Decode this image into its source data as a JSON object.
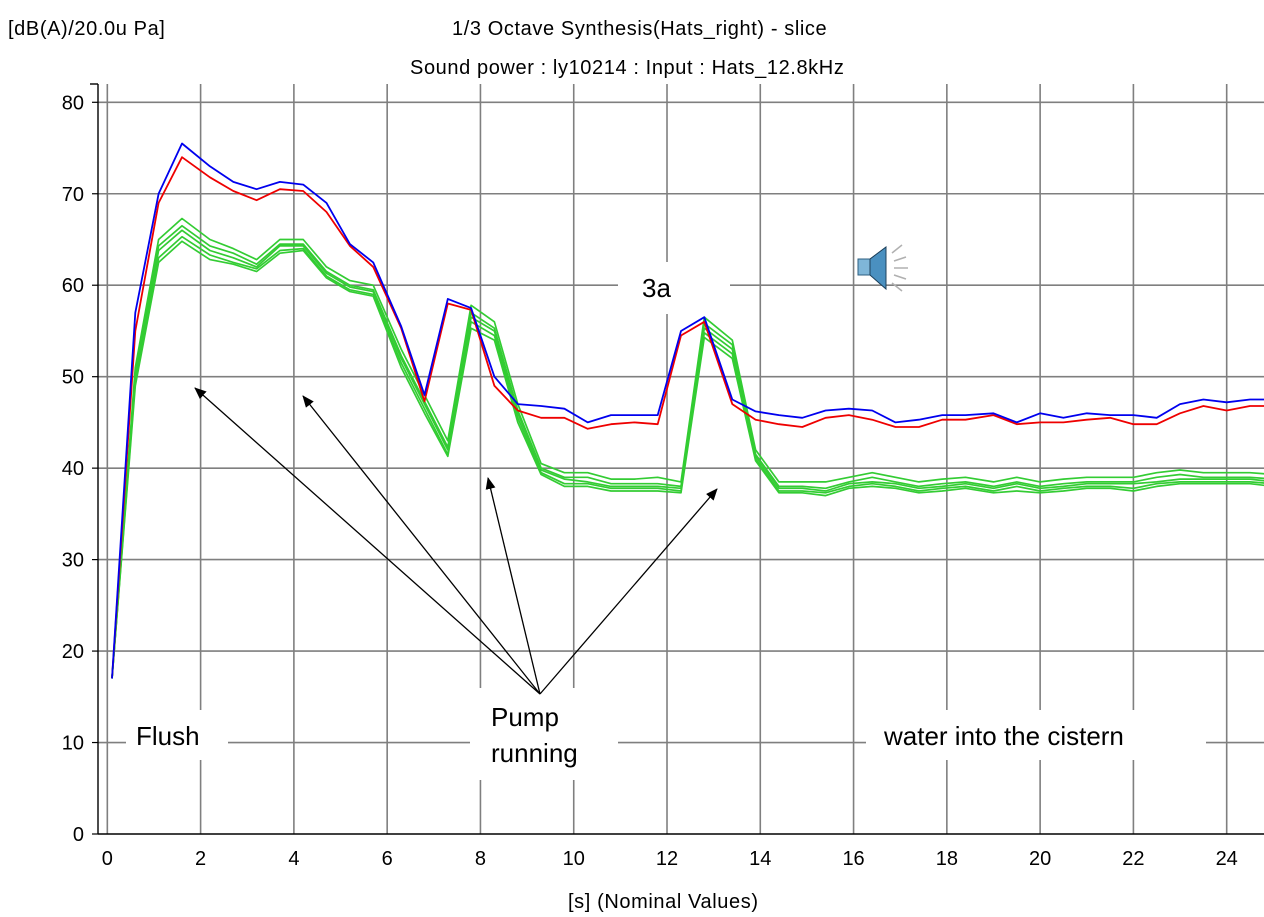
{
  "header": {
    "unit_label": "[dB(A)/20.0u Pa]",
    "title": "1/3 Octave Synthesis(Hats_right) - slice",
    "subtitle": "Sound power : ly10214 : Input : Hats_12.8kHz"
  },
  "annotations": {
    "flush": "Flush",
    "pump_line1": "Pump",
    "pump_line2": "running",
    "cistern": "water into the cistern",
    "marker": "3a"
  },
  "icons": {
    "speaker": "speaker-sound-icon"
  },
  "colors": {
    "blue": "#0000ee",
    "red": "#ee0000",
    "green": "#33cc33",
    "grid": "#7f7f7f"
  },
  "chart_data": {
    "type": "line",
    "title": "1/3 Octave Synthesis(Hats_right) - slice",
    "subtitle": "Sound power : ly10214 : Input : Hats_12.8kHz",
    "xlabel": "[s] (Nominal Values)",
    "ylabel": "[dB(A)/20.0u Pa]",
    "xlim": [
      -0.2,
      24.8
    ],
    "ylim": [
      0,
      82
    ],
    "xticks": [
      0,
      2,
      4,
      6,
      8,
      10,
      12,
      14,
      16,
      18,
      20,
      22,
      24
    ],
    "yticks": [
      0,
      10,
      20,
      30,
      40,
      50,
      60,
      70,
      80
    ],
    "grid": true,
    "x": [
      0.1,
      0.6,
      1.1,
      1.6,
      2.2,
      2.7,
      3.2,
      3.7,
      4.2,
      4.7,
      5.2,
      5.7,
      6.3,
      6.8,
      7.3,
      7.8,
      8.3,
      8.8,
      9.3,
      9.8,
      10.3,
      10.8,
      11.3,
      11.8,
      12.3,
      12.8,
      13.4,
      13.9,
      14.4,
      14.9,
      15.4,
      15.9,
      16.4,
      16.9,
      17.4,
      17.9,
      18.4,
      19.0,
      19.5,
      20.0,
      20.5,
      21.0,
      21.5,
      22.0,
      22.5,
      23.0,
      23.5,
      24.0,
      24.5,
      25.0
    ],
    "series": [
      {
        "color": "#0000ee",
        "values": [
          17,
          57,
          70,
          75.5,
          73,
          71.3,
          70.5,
          71.3,
          71,
          69,
          64.5,
          62.5,
          55.5,
          48,
          58.5,
          57.5,
          50,
          47,
          46.8,
          46.5,
          45,
          45.8,
          45.8,
          45.8,
          55,
          56.5,
          47.5,
          46.2,
          45.8,
          45.5,
          46.3,
          46.5,
          46.3,
          45,
          45.3,
          45.8,
          45.8,
          46,
          45,
          46,
          45.5,
          46,
          45.8,
          45.8,
          45.5,
          47,
          47.5,
          47.2,
          47.5,
          47.5
        ]
      },
      {
        "color": "#ee0000",
        "values": [
          17,
          55,
          69,
          74,
          71.8,
          70.3,
          69.3,
          70.5,
          70.3,
          68,
          64.3,
          62,
          55.3,
          47.3,
          58,
          57.3,
          49,
          46.3,
          45.5,
          45.5,
          44.3,
          44.8,
          45,
          44.8,
          54.5,
          56,
          47,
          45.3,
          44.8,
          44.5,
          45.5,
          45.8,
          45.3,
          44.5,
          44.5,
          45.3,
          45.3,
          45.8,
          44.8,
          45,
          45,
          45.3,
          45.5,
          44.8,
          44.8,
          46,
          46.8,
          46.3,
          46.8,
          46.8
        ]
      },
      {
        "color": "#33cc33",
        "values": [
          17,
          51,
          65,
          67.3,
          65,
          64,
          62.8,
          65,
          65,
          62,
          60.5,
          60,
          53,
          48,
          43,
          57.8,
          56,
          47,
          40.5,
          39.5,
          39.5,
          38.8,
          38.8,
          39,
          38.5,
          56.5,
          54,
          42,
          38.5,
          38.5,
          38.5,
          39,
          39.5,
          39,
          38.5,
          38.8,
          39,
          38.5,
          39,
          38.5,
          38.8,
          39,
          39,
          39,
          39.5,
          39.8,
          39.5,
          39.5,
          39.5,
          39.3
        ]
      },
      {
        "color": "#33cc33",
        "values": [
          17,
          50.5,
          64.3,
          66.5,
          64.3,
          63.5,
          62.3,
          64.5,
          64.5,
          61.5,
          60,
          59.5,
          52.3,
          47.3,
          42.3,
          57,
          55.3,
          46.3,
          40,
          39,
          39,
          38.3,
          38.3,
          38.3,
          38,
          55.8,
          53.5,
          41.5,
          38,
          38,
          37.8,
          38.5,
          39,
          38.5,
          38,
          38.3,
          38.5,
          38,
          38.5,
          38,
          38.3,
          38.5,
          38.5,
          38.5,
          39,
          39.3,
          39,
          39,
          39,
          38.8
        ]
      },
      {
        "color": "#33cc33",
        "values": [
          17,
          50,
          63.8,
          66,
          63.8,
          63,
          62,
          64.3,
          64.3,
          61.3,
          59.8,
          59.3,
          52,
          47,
          42,
          56.5,
          55,
          46,
          39.8,
          38.8,
          38.5,
          38,
          38,
          38,
          37.8,
          55.3,
          53,
          41.3,
          37.8,
          37.8,
          37.5,
          38.3,
          38.5,
          38.3,
          37.8,
          38,
          38.3,
          37.8,
          38.3,
          37.8,
          38,
          38.3,
          38.3,
          38.3,
          38.5,
          38.8,
          38.8,
          38.8,
          38.8,
          38.5
        ]
      },
      {
        "color": "#33cc33",
        "values": [
          17,
          49.5,
          63,
          65.3,
          63.3,
          62.5,
          61.8,
          63.8,
          64,
          61,
          59.5,
          59,
          51.5,
          46.5,
          41.5,
          56,
          54.5,
          45.5,
          39.5,
          38.3,
          38.3,
          37.8,
          37.8,
          37.8,
          37.5,
          54.8,
          52.5,
          41,
          37.5,
          37.5,
          37.3,
          38,
          38.3,
          38,
          37.5,
          37.8,
          38,
          37.5,
          38,
          37.5,
          37.8,
          38,
          38,
          37.8,
          38.3,
          38.5,
          38.5,
          38.5,
          38.5,
          38.3
        ]
      },
      {
        "color": "#33cc33",
        "values": [
          17,
          49,
          62.5,
          64.8,
          62.8,
          62.3,
          61.5,
          63.5,
          63.8,
          60.8,
          59.3,
          58.8,
          51,
          46,
          41.3,
          55.3,
          54,
          45,
          39.3,
          38,
          38,
          37.5,
          37.5,
          37.5,
          37.3,
          54.3,
          52,
          40.8,
          37.3,
          37.3,
          37,
          37.8,
          38,
          37.8,
          37.3,
          37.5,
          37.8,
          37.3,
          37.5,
          37.3,
          37.5,
          37.8,
          37.8,
          37.5,
          38,
          38.3,
          38.3,
          38.3,
          38.3,
          38
        ]
      }
    ],
    "annotations": [
      "Flush",
      "Pump running",
      "water into the cistern",
      "3a"
    ]
  }
}
